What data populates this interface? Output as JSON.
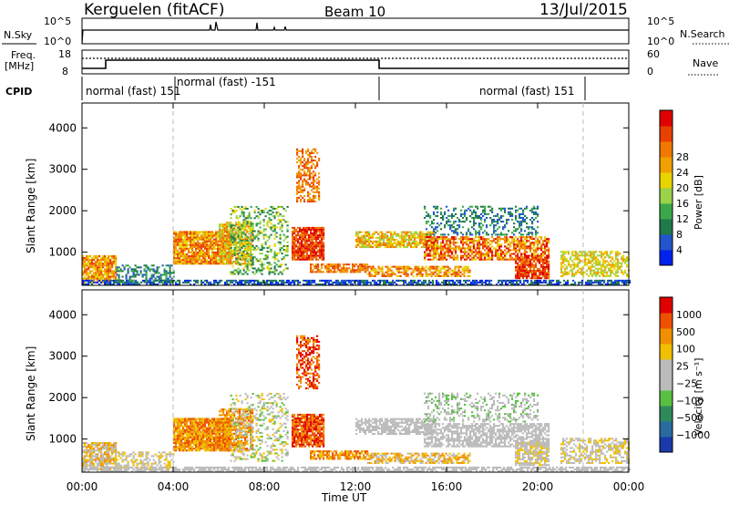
{
  "header": {
    "station": "Kerguelen (fitACF)",
    "beam": "Beam 10",
    "date": "13/Jul/2015"
  },
  "panels": {
    "nsky": {
      "left_label": "N.Sky",
      "left_ticks": [
        "10^5",
        "10^0"
      ],
      "right_ticks": [
        "10^5",
        "10^0"
      ],
      "right_label": "N.Search"
    },
    "freq": {
      "left_label_1": "Freq.",
      "left_label_2": "[MHz]",
      "left_ticks": [
        "18",
        "8"
      ],
      "right_ticks": [
        "60",
        "0"
      ],
      "right_label": "Nave"
    },
    "cpid": {
      "label": "CPID",
      "segments": [
        "normal (fast) 151",
        "normal (fast) -151",
        "normal (fast) 151"
      ]
    }
  },
  "chart_data": [
    {
      "type": "heatmap",
      "name": "Power",
      "ylabel": "Slant Range [km]",
      "xlabel": "Time UT",
      "x_ticks": [
        "00:00",
        "04:00",
        "08:00",
        "12:00",
        "16:00",
        "20:00",
        "00:00"
      ],
      "y_ticks": [
        "1000",
        "2000",
        "3000",
        "4000"
      ],
      "ylim": [
        200,
        4600
      ],
      "colorbar_label": "Power [dB]",
      "colorbar_ticks": [
        "4",
        "8",
        "12",
        "16",
        "20",
        "24",
        "28"
      ],
      "colorbar_colors": [
        "#0022ee",
        "#2255cc",
        "#1f7a4a",
        "#3aa84a",
        "#9ad24a",
        "#e8d400",
        "#f0a000",
        "#f07800",
        "#e84000",
        "#e00000"
      ],
      "dashed_times_h": [
        4,
        22
      ]
    },
    {
      "type": "heatmap",
      "name": "Velocity",
      "ylabel": "Slant Range [km]",
      "xlabel": "Time UT",
      "x_ticks": [
        "00:00",
        "04:00",
        "08:00",
        "12:00",
        "16:00",
        "20:00",
        "00:00"
      ],
      "y_ticks": [
        "1000",
        "2000",
        "3000",
        "4000"
      ],
      "ylim": [
        200,
        4600
      ],
      "colorbar_label": "Velocity [m s⁻¹]",
      "colorbar_ticks": [
        "1000",
        "500",
        "100",
        "25",
        "−25",
        "−100",
        "−500",
        "−1000"
      ],
      "colorbar_colors": [
        "#1a3aaa",
        "#2a6aa0",
        "#2e8a5a",
        "#58c040",
        "#bbbbbb",
        "#bbbbbb",
        "#f0c000",
        "#f09000",
        "#ee5000",
        "#e00000"
      ],
      "dashed_times_h": [
        4,
        22
      ]
    }
  ],
  "colors": {
    "power_scale": [
      "#0022ee",
      "#2255cc",
      "#1f7a4a",
      "#3aa84a",
      "#9ad24a",
      "#e8d400",
      "#f0a000",
      "#f07800",
      "#e84000",
      "#e00000"
    ],
    "velocity_scale": [
      "#1a3aaa",
      "#2a6aa0",
      "#2e8a5a",
      "#58c040",
      "#bbbbbb",
      "#f0c000",
      "#f09000",
      "#ee5000",
      "#e00000"
    ]
  }
}
